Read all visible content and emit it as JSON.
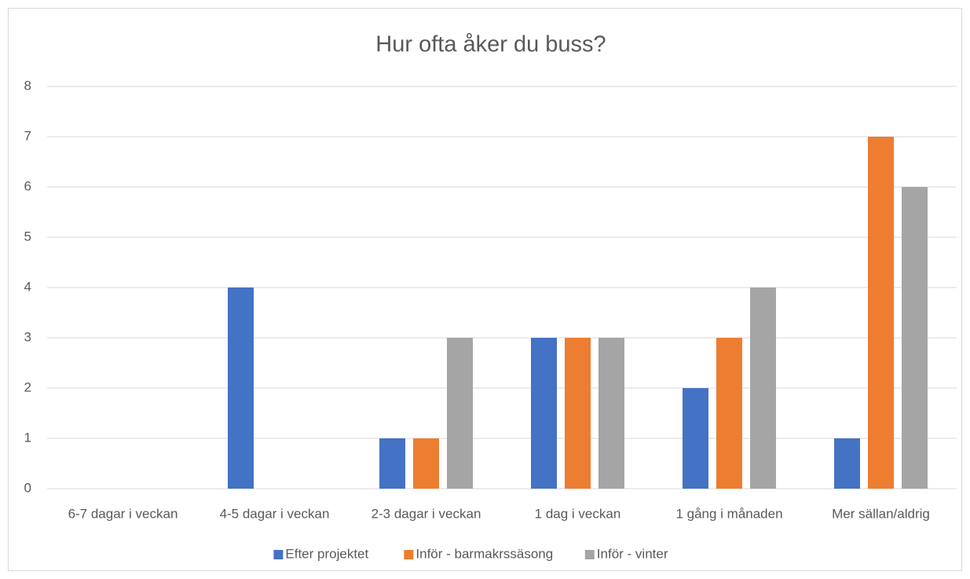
{
  "chart_data": {
    "type": "bar",
    "title": "Hur ofta åker du buss?",
    "categories": [
      "6-7 dagar i veckan",
      "4-5 dagar i veckan",
      "2-3 dagar i veckan",
      "1 dag i veckan",
      "1 gång i månaden",
      "Mer sällan/aldrig"
    ],
    "series": [
      {
        "name": "Efter projektet",
        "color": "#4472c4",
        "values": [
          0,
          4,
          1,
          3,
          2,
          1
        ]
      },
      {
        "name": "Inför - barmakrssäsong",
        "color": "#ed7d31",
        "values": [
          0,
          0,
          1,
          3,
          3,
          7
        ]
      },
      {
        "name": "Inför - vinter",
        "color": "#a5a5a5",
        "values": [
          0,
          0,
          3,
          3,
          4,
          6
        ]
      }
    ],
    "ylim": [
      0,
      8
    ],
    "yticks": [
      0,
      1,
      2,
      3,
      4,
      5,
      6,
      7,
      8
    ],
    "grid": true,
    "legend": "bottom"
  }
}
